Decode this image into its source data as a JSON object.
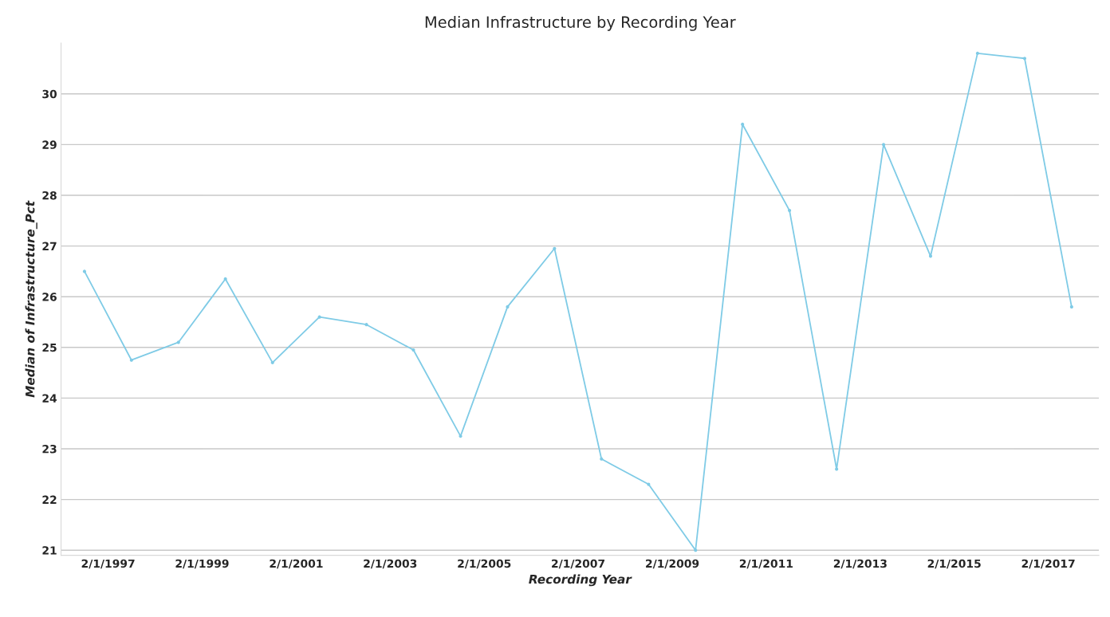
{
  "chart_data": {
    "type": "line",
    "title": "Median Infrastructure by Recording Year",
    "xlabel": "Recording Year",
    "ylabel": "Median of Infrastructure_Pct",
    "x": [
      "1996-08",
      "1997-08",
      "1998-08",
      "1999-08",
      "2000-08",
      "2001-08",
      "2002-08",
      "2003-08",
      "2004-08",
      "2005-08",
      "2006-08",
      "2007-08",
      "2008-08",
      "2009-08",
      "2010-08",
      "2011-08",
      "2012-08",
      "2013-08",
      "2014-08",
      "2015-08",
      "2016-08",
      "2017-08"
    ],
    "series": [
      {
        "color": "#7fcbe6",
        "values": [
          26.5,
          24.75,
          25.1,
          26.35,
          24.7,
          25.6,
          25.45,
          24.95,
          23.25,
          25.8,
          26.95,
          22.8,
          22.3,
          21.0,
          29.4,
          27.7,
          22.6,
          29.0,
          26.8,
          30.8,
          30.7,
          25.8
        ]
      }
    ],
    "xlim": [
      "1996-02",
      "2018-03"
    ],
    "xticks": [
      {
        "value": "1997-02-01",
        "label": "2/1/1997"
      },
      {
        "value": "1999-02-01",
        "label": "2/1/1999"
      },
      {
        "value": "2001-02-01",
        "label": "2/1/2001"
      },
      {
        "value": "2003-02-01",
        "label": "2/1/2003"
      },
      {
        "value": "2005-02-01",
        "label": "2/1/2005"
      },
      {
        "value": "2007-02-01",
        "label": "2/1/2007"
      },
      {
        "value": "2009-02-01",
        "label": "2/1/2009"
      },
      {
        "value": "2011-02-01",
        "label": "2/1/2011"
      },
      {
        "value": "2013-02-01",
        "label": "2/1/2013"
      },
      {
        "value": "2015-02-01",
        "label": "2/1/2015"
      },
      {
        "value": "2017-02-01",
        "label": "2/1/2017"
      }
    ],
    "ylim": [
      20.9,
      31
    ],
    "yticks": [
      21,
      22,
      23,
      24,
      25,
      26,
      27,
      28,
      29,
      30
    ],
    "grid": "y",
    "marker": "circle",
    "line_style": "solid"
  }
}
